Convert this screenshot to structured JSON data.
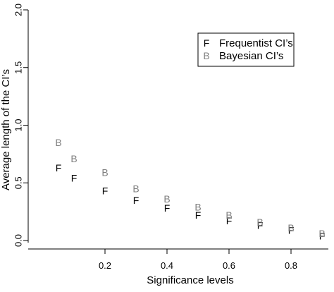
{
  "chart_data": {
    "type": "scatter",
    "title": "",
    "xlabel": "Significance levels",
    "ylabel": "Average length of the CI’s",
    "xlim": [
      0.02,
      0.92
    ],
    "ylim": [
      -0.05,
      2.05
    ],
    "x_ticks": [
      0.2,
      0.4,
      0.6,
      0.8
    ],
    "x_tick_labels": [
      "0.2",
      "0.4",
      "0.6",
      "0.8"
    ],
    "y_ticks": [
      0.0,
      0.5,
      1.0,
      1.5,
      2.0
    ],
    "y_tick_labels": [
      "0.0",
      "0.5",
      "1.0",
      "1.5",
      "2.0"
    ],
    "grid": false,
    "legend_position": "top-right",
    "series": [
      {
        "name": "Frequentist CI’s",
        "marker": "F",
        "color": "#000000",
        "x": [
          0.05,
          0.1,
          0.2,
          0.3,
          0.4,
          0.5,
          0.6,
          0.7,
          0.8,
          0.9
        ],
        "y": [
          0.63,
          0.54,
          0.43,
          0.35,
          0.28,
          0.22,
          0.17,
          0.13,
          0.09,
          0.04
        ]
      },
      {
        "name": "Bayesian CI’s",
        "marker": "B",
        "color": "#7f7f7f",
        "x": [
          0.05,
          0.1,
          0.2,
          0.3,
          0.4,
          0.5,
          0.6,
          0.7,
          0.8,
          0.9
        ],
        "y": [
          0.85,
          0.71,
          0.59,
          0.45,
          0.36,
          0.29,
          0.22,
          0.16,
          0.11,
          0.06
        ]
      }
    ]
  }
}
